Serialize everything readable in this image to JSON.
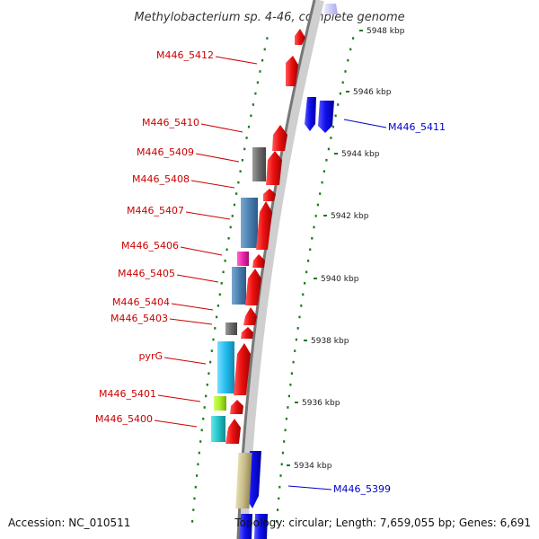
{
  "title": "Methylobacterium sp. 4-46, complete genome",
  "footer": {
    "accession": "Accession: NC_010511",
    "topology": "Topology: circular; Length: 7,659,055 bp; Genes: 6,691"
  },
  "colors": {
    "background": "#ffffff",
    "backbone_light": "#d8d8d8",
    "backbone_dark": "#6e6e6e",
    "tick": "#1e7a1e",
    "label_red": "#cc0000",
    "label_blue": "#0000cc",
    "cds_red": "#ee1111",
    "cds_blue": "#1111ee",
    "gray_feature": "#6a6a6a",
    "steelblue_feature": "#4a7fb0",
    "magenta_feature": "#ee22aa",
    "cyan_feature": "#22bbee",
    "lime_feature": "#aaee22",
    "teal_feature": "#22c4c8",
    "tan_feature": "#c8bb88"
  },
  "scale_labels": [
    {
      "kbp": 5948,
      "text": "5948 kbp"
    },
    {
      "kbp": 5946,
      "text": "5946 kbp"
    },
    {
      "kbp": 5944,
      "text": "5944 kbp"
    },
    {
      "kbp": 5942,
      "text": "5942 kbp"
    },
    {
      "kbp": 5940,
      "text": "5940 kbp"
    },
    {
      "kbp": 5938,
      "text": "5938 kbp"
    },
    {
      "kbp": 5936,
      "text": "5936 kbp"
    },
    {
      "kbp": 5934,
      "text": "5934 kbp"
    }
  ],
  "gene_labels": [
    {
      "id": "M446_5412",
      "text": "M446_5412",
      "strand": "forward"
    },
    {
      "id": "M446_5411",
      "text": "M446_5411",
      "strand": "reverse"
    },
    {
      "id": "M446_5410",
      "text": "M446_5410",
      "strand": "forward"
    },
    {
      "id": "M446_5409",
      "text": "M446_5409",
      "strand": "forward"
    },
    {
      "id": "M446_5408",
      "text": "M446_5408",
      "strand": "forward"
    },
    {
      "id": "M446_5407",
      "text": "M446_5407",
      "strand": "forward"
    },
    {
      "id": "M446_5406",
      "text": "M446_5406",
      "strand": "forward"
    },
    {
      "id": "M446_5405",
      "text": "M446_5405",
      "strand": "forward"
    },
    {
      "id": "M446_5404",
      "text": "M446_5404",
      "strand": "forward"
    },
    {
      "id": "M446_5403",
      "text": "M446_5403",
      "strand": "forward"
    },
    {
      "id": "pyrG",
      "text": "pyrG",
      "strand": "forward"
    },
    {
      "id": "M446_5401",
      "text": "M446_5401",
      "strand": "forward"
    },
    {
      "id": "M446_5400",
      "text": "M446_5400",
      "strand": "forward"
    },
    {
      "id": "M446_5399",
      "text": "M446_5399",
      "strand": "reverse"
    }
  ]
}
